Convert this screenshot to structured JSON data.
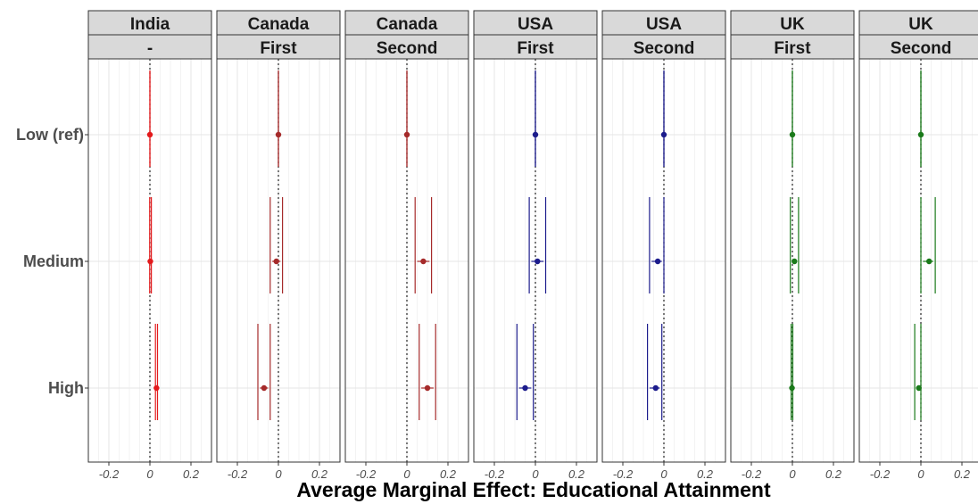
{
  "chart_data": {
    "type": "forest",
    "xlabel": "Average Marginal Effect: Educational Attainment",
    "categories": [
      "Low (ref)",
      "Medium",
      "High"
    ],
    "xticks": [
      -0.2,
      0,
      0.2
    ],
    "xtick_labels": [
      "-0.2",
      "0",
      "0.2"
    ],
    "xlim": [
      -0.3,
      0.3
    ],
    "reference_line": 0,
    "grid": true,
    "panels": [
      {
        "strip_top": "India",
        "strip_bottom": "-",
        "color": "#e31a1c",
        "points": [
          {
            "category": "Low (ref)",
            "estimate": 0.0,
            "lower": 0.0,
            "upper": 0.0,
            "inner_lower": 0.0,
            "inner_upper": 0.0
          },
          {
            "category": "Medium",
            "estimate": 0.002,
            "lower": -0.001,
            "upper": 0.007,
            "inner_lower": 0.001,
            "inner_upper": 0.004
          },
          {
            "category": "High",
            "estimate": 0.032,
            "lower": 0.027,
            "upper": 0.037,
            "inner_lower": 0.029,
            "inner_upper": 0.035
          }
        ]
      },
      {
        "strip_top": "Canada",
        "strip_bottom": "First",
        "color": "#a52a2a",
        "points": [
          {
            "category": "Low (ref)",
            "estimate": 0.0,
            "lower": 0.0,
            "upper": 0.0,
            "inner_lower": 0.0,
            "inner_upper": 0.0
          },
          {
            "category": "Medium",
            "estimate": -0.01,
            "lower": -0.04,
            "upper": 0.02,
            "inner_lower": -0.03,
            "inner_upper": 0.01
          },
          {
            "category": "High",
            "estimate": -0.07,
            "lower": -0.1,
            "upper": -0.04,
            "inner_lower": -0.09,
            "inner_upper": -0.05
          }
        ]
      },
      {
        "strip_top": "Canada",
        "strip_bottom": "Second",
        "color": "#a52a2a",
        "points": [
          {
            "category": "Low (ref)",
            "estimate": 0.0,
            "lower": 0.0,
            "upper": 0.0,
            "inner_lower": 0.0,
            "inner_upper": 0.0
          },
          {
            "category": "Medium",
            "estimate": 0.08,
            "lower": 0.04,
            "upper": 0.12,
            "inner_lower": 0.05,
            "inner_upper": 0.11
          },
          {
            "category": "High",
            "estimate": 0.1,
            "lower": 0.06,
            "upper": 0.14,
            "inner_lower": 0.07,
            "inner_upper": 0.13
          }
        ]
      },
      {
        "strip_top": "USA",
        "strip_bottom": "First",
        "color": "#1c1c8c",
        "points": [
          {
            "category": "Low (ref)",
            "estimate": 0.0,
            "lower": 0.0,
            "upper": 0.0,
            "inner_lower": 0.0,
            "inner_upper": 0.0
          },
          {
            "category": "Medium",
            "estimate": 0.01,
            "lower": -0.03,
            "upper": 0.05,
            "inner_lower": -0.02,
            "inner_upper": 0.04
          },
          {
            "category": "High",
            "estimate": -0.05,
            "lower": -0.09,
            "upper": -0.01,
            "inner_lower": -0.08,
            "inner_upper": -0.02
          }
        ]
      },
      {
        "strip_top": "USA",
        "strip_bottom": "Second",
        "color": "#1c1c8c",
        "points": [
          {
            "category": "Low (ref)",
            "estimate": 0.0,
            "lower": 0.0,
            "upper": 0.0,
            "inner_lower": 0.0,
            "inner_upper": 0.0
          },
          {
            "category": "Medium",
            "estimate": -0.03,
            "lower": -0.07,
            "upper": 0.0,
            "inner_lower": -0.06,
            "inner_upper": -0.01
          },
          {
            "category": "High",
            "estimate": -0.04,
            "lower": -0.08,
            "upper": -0.01,
            "inner_lower": -0.07,
            "inner_upper": -0.02
          }
        ]
      },
      {
        "strip_top": "UK",
        "strip_bottom": "First",
        "color": "#1a7a1a",
        "points": [
          {
            "category": "Low (ref)",
            "estimate": 0.0,
            "lower": 0.0,
            "upper": 0.0,
            "inner_lower": 0.0,
            "inner_upper": 0.0
          },
          {
            "category": "Medium",
            "estimate": 0.01,
            "lower": -0.01,
            "upper": 0.03,
            "inner_lower": 0.0,
            "inner_upper": 0.02
          },
          {
            "category": "High",
            "estimate": -0.002,
            "lower": -0.006,
            "upper": 0.002,
            "inner_lower": -0.004,
            "inner_upper": 0.0
          }
        ]
      },
      {
        "strip_top": "UK",
        "strip_bottom": "Second",
        "color": "#1a7a1a",
        "points": [
          {
            "category": "Low (ref)",
            "estimate": 0.0,
            "lower": 0.0,
            "upper": 0.0,
            "inner_lower": 0.0,
            "inner_upper": 0.0
          },
          {
            "category": "Medium",
            "estimate": 0.04,
            "lower": 0.0,
            "upper": 0.07,
            "inner_lower": 0.01,
            "inner_upper": 0.06
          },
          {
            "category": "High",
            "estimate": -0.01,
            "lower": -0.03,
            "upper": 0.0,
            "inner_lower": -0.02,
            "inner_upper": -0.005
          }
        ]
      }
    ]
  }
}
